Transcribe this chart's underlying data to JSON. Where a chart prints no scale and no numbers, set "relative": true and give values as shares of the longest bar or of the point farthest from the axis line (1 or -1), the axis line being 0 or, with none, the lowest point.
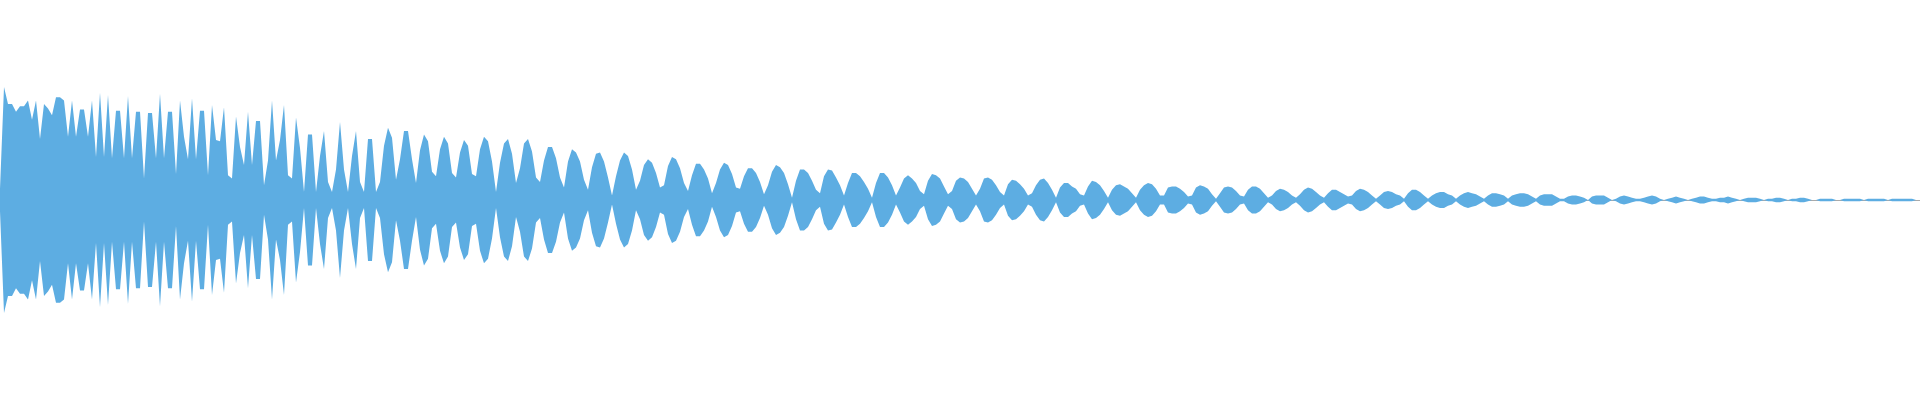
{
  "chart_data": {
    "type": "area",
    "relative": true,
    "categories": [
      null,
      null,
      null,
      null,
      null,
      null,
      null,
      null,
      null,
      null,
      null,
      null,
      null,
      null,
      null,
      null,
      null,
      null,
      null,
      null,
      null,
      null,
      null,
      null,
      null,
      null,
      null,
      null,
      null,
      null,
      null,
      null,
      null,
      null,
      null,
      null,
      null,
      null,
      null,
      null,
      null,
      null,
      null,
      null,
      null,
      null,
      null,
      null,
      null,
      null,
      null,
      null,
      null,
      null,
      null,
      null,
      null,
      null,
      null,
      null,
      null,
      null,
      null,
      null,
      null,
      null,
      null,
      null,
      null,
      null,
      null,
      null,
      null,
      null,
      null,
      null,
      null,
      null,
      null,
      null,
      null,
      null,
      null,
      null,
      null,
      null,
      null,
      null,
      null,
      null,
      null,
      null,
      null,
      null,
      null,
      null,
      null,
      null,
      null,
      null,
      null,
      null,
      null,
      null,
      null,
      null,
      null,
      null,
      null,
      null,
      null,
      null,
      null,
      null,
      null,
      null,
      null,
      null,
      null,
      null,
      null,
      null,
      null,
      null,
      null,
      null,
      null,
      null,
      null,
      null,
      null,
      null,
      null,
      null,
      null,
      null,
      null,
      null,
      null,
      null,
      null,
      null,
      null,
      null,
      null,
      null,
      null,
      null,
      null,
      null,
      null,
      null,
      null,
      null,
      null,
      null,
      null,
      null,
      null,
      null,
      null,
      null,
      null,
      null,
      null,
      null,
      null,
      null,
      null,
      null,
      null,
      null,
      null,
      null,
      null,
      null,
      null,
      null,
      null,
      null,
      null,
      null,
      null,
      null,
      null,
      null,
      null,
      null,
      null,
      null,
      null,
      null,
      null,
      null,
      null,
      null,
      null,
      null,
      null,
      null,
      null,
      null,
      null,
      null,
      null,
      null,
      null,
      null,
      null,
      null,
      null,
      null,
      null,
      null,
      null,
      null,
      null,
      null,
      null,
      null,
      null,
      null,
      null,
      null,
      null,
      null,
      null,
      null,
      null,
      null,
      null,
      null,
      null,
      null,
      null,
      null,
      null,
      null,
      null,
      null,
      null,
      null,
      null,
      null,
      null,
      null,
      null,
      null,
      null,
      null,
      null,
      null,
      null,
      null,
      null,
      null,
      null,
      null,
      null,
      null,
      null,
      null,
      null,
      null,
      null,
      null,
      null,
      null,
      null,
      null,
      null,
      null,
      null,
      null,
      null,
      null,
      null,
      null,
      null,
      null,
      null,
      null,
      null,
      null,
      null,
      null,
      null,
      null,
      null,
      null,
      null,
      null,
      null,
      null,
      null,
      null,
      null,
      null,
      null,
      null,
      null,
      null,
      null,
      null,
      null,
      null,
      null,
      null,
      null,
      null,
      null,
      null,
      null,
      null,
      null,
      null,
      null,
      null,
      null,
      null,
      null,
      null,
      null,
      null,
      null,
      null,
      null,
      null,
      null,
      null,
      null,
      null,
      null,
      null,
      null,
      null,
      null,
      null,
      null,
      null,
      null,
      null,
      null,
      null,
      null,
      null,
      null,
      null,
      null,
      null,
      null,
      null,
      null,
      null,
      null,
      null,
      null,
      null,
      null,
      null,
      null,
      null,
      null,
      null,
      null,
      null,
      null,
      null,
      null,
      null,
      null,
      null,
      null,
      null,
      null,
      null,
      null,
      null,
      null,
      null,
      null,
      null,
      null,
      null,
      null,
      null,
      null,
      null,
      null,
      null,
      null,
      null,
      null,
      null,
      null,
      null,
      null,
      null,
      null,
      null,
      null,
      null,
      null,
      null,
      null,
      null,
      null,
      null,
      null,
      null,
      null,
      null,
      null,
      null,
      null,
      null,
      null,
      null,
      null,
      null,
      null,
      null,
      null,
      null,
      null,
      null,
      null,
      null,
      null,
      null,
      null,
      null,
      null,
      null,
      null,
      null,
      null,
      null,
      null,
      null,
      null,
      null,
      null,
      null,
      null,
      null,
      null,
      null,
      null,
      null,
      null,
      null,
      null,
      null,
      null,
      null,
      null,
      null,
      null,
      null,
      null,
      null,
      null,
      null,
      null,
      null,
      null,
      null,
      null,
      null,
      null,
      null,
      null,
      null,
      null,
      null,
      null,
      null,
      null,
      null,
      null
    ],
    "series": [
      {
        "color": "#5dade2",
        "values": [
          0.1,
          1.0,
          0.85,
          0.85,
          0.78,
          0.83,
          0.83,
          0.88,
          0.71,
          0.88,
          0.54,
          0.85,
          0.81,
          0.75,
          0.91,
          0.91,
          0.88,
          0.56,
          0.88,
          0.56,
          0.8,
          0.8,
          0.56,
          0.88,
          0.38,
          0.95,
          0.38,
          0.93,
          0.37,
          0.79,
          0.79,
          0.37,
          0.92,
          0.37,
          0.78,
          0.78,
          0.19,
          0.77,
          0.77,
          0.37,
          0.94,
          0.37,
          0.78,
          0.78,
          0.23,
          0.88,
          0.56,
          0.36,
          0.9,
          0.36,
          0.79,
          0.79,
          0.22,
          0.84,
          0.53,
          0.52,
          0.82,
          0.22,
          0.19,
          0.74,
          0.47,
          0.31,
          0.78,
          0.31,
          0.7,
          0.7,
          0.13,
          0.35,
          0.88,
          0.35,
          0.53,
          0.84,
          0.22,
          0.19,
          0.73,
          0.46,
          0.07,
          0.58,
          0.58,
          0.07,
          0.39,
          0.61,
          0.16,
          0.07,
          0.27,
          0.69,
          0.27,
          0.07,
          0.39,
          0.61,
          0.16,
          0.07,
          0.54,
          0.54,
          0.07,
          0.16,
          0.48,
          0.64,
          0.55,
          0.18,
          0.36,
          0.61,
          0.61,
          0.36,
          0.15,
          0.44,
          0.58,
          0.52,
          0.25,
          0.21,
          0.45,
          0.56,
          0.5,
          0.24,
          0.2,
          0.42,
          0.53,
          0.48,
          0.23,
          0.21,
          0.45,
          0.56,
          0.52,
          0.34,
          0.07,
          0.33,
          0.5,
          0.54,
          0.41,
          0.15,
          0.28,
          0.5,
          0.54,
          0.43,
          0.2,
          0.16,
          0.35,
          0.47,
          0.47,
          0.37,
          0.2,
          0.11,
          0.34,
          0.45,
          0.42,
          0.34,
          0.18,
          0.09,
          0.29,
          0.41,
          0.42,
          0.34,
          0.2,
          0.04,
          0.21,
          0.35,
          0.42,
          0.39,
          0.27,
          0.09,
          0.17,
          0.31,
          0.36,
          0.33,
          0.24,
          0.11,
          0.13,
          0.3,
          0.38,
          0.36,
          0.28,
          0.15,
          0.08,
          0.22,
          0.32,
          0.32,
          0.27,
          0.19,
          0.06,
          0.15,
          0.27,
          0.33,
          0.31,
          0.23,
          0.11,
          0.1,
          0.21,
          0.28,
          0.28,
          0.24,
          0.16,
          0.05,
          0.13,
          0.25,
          0.31,
          0.29,
          0.24,
          0.14,
          0.02,
          0.17,
          0.27,
          0.27,
          0.24,
          0.17,
          0.09,
          0.06,
          0.21,
          0.27,
          0.26,
          0.2,
          0.13,
          0.04,
          0.15,
          0.24,
          0.24,
          0.21,
          0.16,
          0.1,
          0.02,
          0.15,
          0.24,
          0.24,
          0.2,
          0.13,
          0.04,
          0.11,
          0.19,
          0.22,
          0.19,
          0.15,
          0.08,
          0.05,
          0.17,
          0.23,
          0.22,
          0.19,
          0.12,
          0.05,
          0.08,
          0.17,
          0.2,
          0.19,
          0.16,
          0.1,
          0.04,
          0.1,
          0.19,
          0.2,
          0.18,
          0.13,
          0.07,
          0.04,
          0.14,
          0.18,
          0.17,
          0.14,
          0.1,
          0.04,
          0.06,
          0.13,
          0.18,
          0.19,
          0.15,
          0.09,
          0.02,
          0.11,
          0.15,
          0.15,
          0.12,
          0.1,
          0.05,
          0.04,
          0.12,
          0.17,
          0.16,
          0.13,
          0.08,
          0.02,
          0.09,
          0.13,
          0.14,
          0.12,
          0.1,
          0.06,
          0.02,
          0.09,
          0.13,
          0.15,
          0.14,
          0.1,
          0.04,
          0.04,
          0.11,
          0.12,
          0.12,
          0.1,
          0.07,
          0.03,
          0.04,
          0.11,
          0.13,
          0.12,
          0.1,
          0.05,
          0.01,
          0.06,
          0.11,
          0.12,
          0.11,
          0.08,
          0.04,
          0.03,
          0.09,
          0.12,
          0.12,
          0.1,
          0.06,
          0.02,
          0.04,
          0.08,
          0.1,
          0.09,
          0.07,
          0.04,
          0.02,
          0.05,
          0.09,
          0.11,
          0.1,
          0.07,
          0.04,
          0.02,
          0.06,
          0.09,
          0.09,
          0.07,
          0.05,
          0.03,
          0.04,
          0.08,
          0.1,
          0.09,
          0.07,
          0.04,
          0.01,
          0.04,
          0.07,
          0.08,
          0.07,
          0.05,
          0.04,
          0.01,
          0.06,
          0.09,
          0.09,
          0.07,
          0.04,
          0.01,
          0.04,
          0.06,
          0.07,
          0.07,
          0.05,
          0.04,
          0.01,
          0.04,
          0.06,
          0.07,
          0.06,
          0.05,
          0.03,
          0.01,
          0.04,
          0.06,
          0.06,
          0.05,
          0.04,
          0.01,
          0.04,
          0.05,
          0.06,
          0.06,
          0.05,
          0.03,
          0.01,
          0.04,
          0.05,
          0.05,
          0.05,
          0.03,
          0.01,
          0.01,
          0.03,
          0.04,
          0.04,
          0.03,
          0.02,
          0,
          0.03,
          0.04,
          0.04,
          0.04,
          0.02,
          0,
          0.01,
          0.03,
          0.04,
          0.03,
          0.02,
          0.01,
          0.01,
          0.02,
          0.03,
          0.04,
          0.03,
          0.01,
          0,
          0.01,
          0.02,
          0.03,
          0.02,
          0.01,
          0,
          0.01,
          0.02,
          0.03,
          0.03,
          0.02,
          0.01,
          0.01,
          0.02,
          0.02,
          0.03,
          0.02,
          0.01,
          0,
          0.01,
          0.02,
          0.02,
          0.02,
          0.01,
          0,
          0.01,
          0.01,
          0.02,
          0.02,
          0.01,
          0,
          0.01,
          0.01,
          0.02,
          0.02,
          0.01,
          0,
          0,
          0.01,
          0.01,
          0.01,
          0.01,
          0,
          0,
          0.01,
          0.01,
          0.01,
          0.01,
          0.01,
          0,
          0.01,
          0.01,
          0.01,
          0.01,
          0.01,
          0,
          0.01,
          0.01,
          0.01,
          0.01,
          0.01,
          0.01,
          0,
          0
        ]
      },
      {
        "color": "#5dade2",
        "values": [
          -0.1,
          -1.0,
          -0.85,
          -0.85,
          -0.78,
          -0.83,
          -0.83,
          -0.88,
          -0.71,
          -0.88,
          -0.54,
          -0.85,
          -0.81,
          -0.75,
          -0.91,
          -0.91,
          -0.88,
          -0.56,
          -0.88,
          -0.56,
          -0.8,
          -0.8,
          -0.56,
          -0.88,
          -0.38,
          -0.95,
          -0.38,
          -0.93,
          -0.37,
          -0.79,
          -0.79,
          -0.37,
          -0.92,
          -0.37,
          -0.78,
          -0.78,
          -0.19,
          -0.77,
          -0.77,
          -0.37,
          -0.94,
          -0.37,
          -0.78,
          -0.78,
          -0.23,
          -0.88,
          -0.56,
          -0.36,
          -0.9,
          -0.36,
          -0.79,
          -0.79,
          -0.22,
          -0.84,
          -0.53,
          -0.52,
          -0.82,
          -0.22,
          -0.19,
          -0.74,
          -0.47,
          -0.31,
          -0.78,
          -0.31,
          -0.7,
          -0.7,
          -0.13,
          -0.35,
          -0.88,
          -0.35,
          -0.53,
          -0.84,
          -0.22,
          -0.19,
          -0.73,
          -0.46,
          -0.07,
          -0.58,
          -0.58,
          -0.07,
          -0.39,
          -0.61,
          -0.16,
          -0.07,
          -0.27,
          -0.69,
          -0.27,
          -0.07,
          -0.39,
          -0.61,
          -0.16,
          -0.07,
          -0.54,
          -0.54,
          -0.07,
          -0.16,
          -0.48,
          -0.64,
          -0.55,
          -0.18,
          -0.36,
          -0.61,
          -0.61,
          -0.36,
          -0.15,
          -0.44,
          -0.58,
          -0.52,
          -0.25,
          -0.21,
          -0.45,
          -0.56,
          -0.5,
          -0.24,
          -0.2,
          -0.42,
          -0.53,
          -0.48,
          -0.23,
          -0.21,
          -0.45,
          -0.56,
          -0.52,
          -0.34,
          -0.07,
          -0.33,
          -0.5,
          -0.54,
          -0.41,
          -0.15,
          -0.28,
          -0.5,
          -0.54,
          -0.43,
          -0.2,
          -0.16,
          -0.35,
          -0.47,
          -0.47,
          -0.37,
          -0.2,
          -0.11,
          -0.34,
          -0.45,
          -0.42,
          -0.34,
          -0.18,
          -0.09,
          -0.29,
          -0.41,
          -0.42,
          -0.34,
          -0.2,
          -0.04,
          -0.21,
          -0.35,
          -0.42,
          -0.39,
          -0.27,
          -0.09,
          -0.17,
          -0.31,
          -0.36,
          -0.33,
          -0.24,
          -0.11,
          -0.13,
          -0.3,
          -0.38,
          -0.36,
          -0.28,
          -0.15,
          -0.08,
          -0.22,
          -0.32,
          -0.32,
          -0.27,
          -0.19,
          -0.06,
          -0.15,
          -0.27,
          -0.33,
          -0.31,
          -0.23,
          -0.11,
          -0.1,
          -0.21,
          -0.28,
          -0.28,
          -0.24,
          -0.16,
          -0.05,
          -0.13,
          -0.25,
          -0.31,
          -0.29,
          -0.24,
          -0.14,
          -0.02,
          -0.17,
          -0.27,
          -0.27,
          -0.24,
          -0.17,
          -0.09,
          -0.06,
          -0.21,
          -0.27,
          -0.26,
          -0.2,
          -0.13,
          -0.04,
          -0.15,
          -0.24,
          -0.24,
          -0.21,
          -0.16,
          -0.1,
          -0.02,
          -0.15,
          -0.24,
          -0.24,
          -0.2,
          -0.13,
          -0.04,
          -0.11,
          -0.19,
          -0.22,
          -0.19,
          -0.15,
          -0.08,
          -0.05,
          -0.17,
          -0.23,
          -0.22,
          -0.19,
          -0.12,
          -0.05,
          -0.08,
          -0.17,
          -0.2,
          -0.19,
          -0.16,
          -0.1,
          -0.04,
          -0.1,
          -0.19,
          -0.2,
          -0.18,
          -0.13,
          -0.07,
          -0.04,
          -0.14,
          -0.18,
          -0.17,
          -0.14,
          -0.1,
          -0.04,
          -0.06,
          -0.13,
          -0.18,
          -0.19,
          -0.15,
          -0.09,
          -0.02,
          -0.11,
          -0.15,
          -0.15,
          -0.12,
          -0.1,
          -0.05,
          -0.04,
          -0.12,
          -0.17,
          -0.16,
          -0.13,
          -0.08,
          -0.02,
          -0.09,
          -0.13,
          -0.14,
          -0.12,
          -0.1,
          -0.06,
          -0.02,
          -0.09,
          -0.13,
          -0.15,
          -0.14,
          -0.1,
          -0.04,
          -0.04,
          -0.11,
          -0.12,
          -0.12,
          -0.1,
          -0.07,
          -0.03,
          -0.04,
          -0.11,
          -0.13,
          -0.12,
          -0.1,
          -0.05,
          -0.01,
          -0.06,
          -0.11,
          -0.12,
          -0.11,
          -0.08,
          -0.04,
          -0.03,
          -0.09,
          -0.12,
          -0.12,
          -0.1,
          -0.06,
          -0.02,
          -0.04,
          -0.08,
          -0.1,
          -0.09,
          -0.07,
          -0.04,
          -0.02,
          -0.05,
          -0.09,
          -0.11,
          -0.1,
          -0.07,
          -0.04,
          -0.02,
          -0.06,
          -0.09,
          -0.09,
          -0.07,
          -0.05,
          -0.03,
          -0.04,
          -0.08,
          -0.1,
          -0.09,
          -0.07,
          -0.04,
          -0.01,
          -0.04,
          -0.07,
          -0.08,
          -0.07,
          -0.05,
          -0.04,
          -0.01,
          -0.06,
          -0.09,
          -0.09,
          -0.07,
          -0.04,
          -0.01,
          -0.04,
          -0.06,
          -0.07,
          -0.07,
          -0.05,
          -0.04,
          -0.01,
          -0.04,
          -0.06,
          -0.07,
          -0.06,
          -0.05,
          -0.03,
          -0.01,
          -0.04,
          -0.06,
          -0.06,
          -0.05,
          -0.04,
          -0.01,
          -0.04,
          -0.05,
          -0.06,
          -0.06,
          -0.05,
          -0.03,
          -0.01,
          -0.04,
          -0.05,
          -0.05,
          -0.05,
          -0.03,
          -0.01,
          -0.01,
          -0.03,
          -0.04,
          -0.04,
          -0.03,
          -0.02,
          0,
          -0.03,
          -0.04,
          -0.04,
          -0.04,
          -0.02,
          0,
          -0.01,
          -0.03,
          -0.04,
          -0.03,
          -0.02,
          -0.01,
          -0.01,
          -0.02,
          -0.03,
          -0.04,
          -0.03,
          -0.01,
          0,
          -0.01,
          -0.02,
          -0.03,
          -0.02,
          -0.01,
          0,
          -0.01,
          -0.02,
          -0.03,
          -0.03,
          -0.02,
          -0.01,
          -0.01,
          -0.02,
          -0.02,
          -0.03,
          -0.02,
          -0.01,
          0,
          -0.01,
          -0.02,
          -0.02,
          -0.02,
          -0.01,
          0,
          -0.01,
          -0.01,
          -0.02,
          -0.02,
          -0.01,
          0,
          -0.01,
          -0.01,
          -0.02,
          -0.02,
          -0.01,
          0,
          0,
          -0.01,
          -0.01,
          -0.01,
          -0.01,
          0,
          0,
          -0.01,
          -0.01,
          -0.01,
          -0.01,
          -0.01,
          0,
          -0.01,
          -0.01,
          -0.01,
          -0.01,
          -0.01,
          0,
          -0.01,
          -0.01,
          -0.01,
          -0.01,
          -0.01,
          -0.01,
          0,
          0
        ]
      }
    ]
  }
}
